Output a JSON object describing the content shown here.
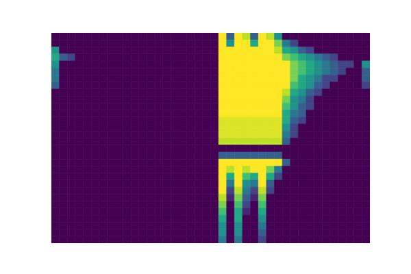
{
  "chart_data": {
    "type": "heatmap",
    "tick_labels": false,
    "clim": [
      0,
      1
    ],
    "cells": [
      [
        0,
        0,
        0,
        0,
        0,
        0,
        0,
        0,
        0,
        0,
        0,
        0,
        0,
        0,
        0,
        0,
        0,
        0,
        0,
        0,
        0,
        1,
        0.3,
        1,
        0.9,
        0.3,
        1,
        0.9,
        0.5,
        0,
        0,
        0,
        0,
        0,
        0,
        0,
        0,
        0,
        0,
        0
      ],
      [
        0,
        0,
        0,
        0,
        0,
        0,
        0,
        0,
        0,
        0,
        0,
        0,
        0,
        0,
        0,
        0,
        0,
        0,
        0,
        0,
        0,
        1,
        0.5,
        1,
        1,
        0.6,
        1,
        1,
        0.8,
        0.4,
        0.2,
        0,
        0,
        0,
        0,
        0,
        0,
        0,
        0,
        0
      ],
      [
        0.5,
        0,
        0,
        0,
        0,
        0,
        0,
        0,
        0,
        0,
        0,
        0,
        0,
        0,
        0,
        0,
        0,
        0,
        0,
        0,
        0,
        1,
        1,
        1,
        1,
        1,
        1,
        1,
        0.9,
        0.6,
        0.5,
        0.3,
        0.2,
        0,
        0,
        0,
        0,
        0,
        0,
        0
      ],
      [
        0.6,
        0.3,
        0.2,
        0,
        0,
        0,
        0,
        0,
        0,
        0,
        0,
        0,
        0,
        0,
        0,
        0,
        0,
        0,
        0,
        0,
        0,
        1,
        1,
        1,
        1,
        1,
        1,
        1,
        1,
        0.8,
        0.7,
        0.6,
        0.5,
        0.4,
        0.3,
        0.2,
        0,
        0,
        0,
        0
      ],
      [
        0.5,
        0,
        0,
        0,
        0,
        0,
        0,
        0,
        0,
        0,
        0,
        0,
        0,
        0,
        0,
        0,
        0,
        0,
        0,
        0,
        0,
        1,
        1,
        1,
        1,
        1,
        1,
        1,
        1,
        1,
        0.8,
        0.7,
        0.6,
        0.5,
        0.4,
        0.3,
        0.2,
        0.2,
        0,
        0.5
      ],
      [
        0.4,
        0,
        0,
        0,
        0,
        0,
        0,
        0,
        0,
        0,
        0,
        0,
        0,
        0,
        0,
        0,
        0,
        0,
        0,
        0,
        0,
        1,
        1,
        1,
        1,
        1,
        1,
        1,
        1,
        1,
        0.8,
        0.7,
        0.6,
        0.5,
        0.4,
        0.3,
        0.2,
        0,
        0,
        0.3
      ],
      [
        0.4,
        0,
        0,
        0,
        0,
        0,
        0,
        0,
        0,
        0,
        0,
        0,
        0,
        0,
        0,
        0,
        0,
        0,
        0,
        0,
        0,
        1,
        1,
        1,
        1,
        1,
        1,
        1,
        1,
        1,
        0.8,
        0.6,
        0.5,
        0.4,
        0.2,
        0.2,
        0,
        0,
        0,
        0.3
      ],
      [
        0.3,
        0,
        0,
        0,
        0,
        0,
        0,
        0,
        0,
        0,
        0,
        0,
        0,
        0,
        0,
        0,
        0,
        0,
        0,
        0,
        0,
        1,
        1,
        1,
        1,
        1,
        1,
        1,
        1,
        1,
        0.7,
        0.6,
        0.5,
        0.3,
        0.2,
        0,
        0,
        0,
        0,
        0.2
      ],
      [
        0,
        0,
        0,
        0,
        0,
        0,
        0,
        0,
        0,
        0,
        0,
        0,
        0,
        0,
        0,
        0,
        0,
        0,
        0,
        0,
        0,
        1,
        1,
        1,
        1,
        1,
        1,
        1,
        1,
        0.9,
        0.6,
        0.5,
        0.3,
        0.2,
        0,
        0,
        0,
        0,
        0,
        0
      ],
      [
        0,
        0,
        0,
        0,
        0,
        0,
        0,
        0,
        0,
        0,
        0,
        0,
        0,
        0,
        0,
        0,
        0,
        0,
        0,
        0,
        0,
        1,
        1,
        1,
        1,
        1,
        1,
        1,
        1,
        0.8,
        0.5,
        0.4,
        0.2,
        0,
        0,
        0,
        0,
        0,
        0,
        0
      ],
      [
        0,
        0,
        0,
        0,
        0,
        0,
        0,
        0,
        0,
        0,
        0,
        0,
        0,
        0,
        0,
        0,
        0,
        0,
        0,
        0,
        0,
        1,
        1,
        1,
        1,
        1,
        1,
        1,
        1,
        0.7,
        0.5,
        0.3,
        0.2,
        0,
        0,
        0,
        0,
        0,
        0,
        0
      ],
      [
        0,
        0,
        0,
        0,
        0,
        0,
        0,
        0,
        0,
        0,
        0,
        0,
        0,
        0,
        0,
        0,
        0,
        0,
        0,
        0,
        0,
        1,
        1,
        1,
        1,
        1,
        1,
        1,
        1,
        0.6,
        0.4,
        0.3,
        0,
        0,
        0,
        0,
        0,
        0,
        0,
        0
      ],
      [
        0,
        0,
        0,
        0,
        0,
        0,
        0,
        0,
        0,
        0,
        0,
        0,
        0,
        0,
        0,
        0,
        0,
        0,
        0,
        0,
        0,
        0.95,
        0.95,
        0.95,
        0.95,
        0.95,
        0.95,
        0.95,
        0.95,
        0.6,
        0.3,
        0.2,
        0,
        0,
        0,
        0,
        0,
        0,
        0,
        0
      ],
      [
        0,
        0,
        0,
        0,
        0,
        0,
        0,
        0,
        0,
        0,
        0,
        0,
        0,
        0,
        0,
        0,
        0,
        0,
        0,
        0,
        0,
        0.95,
        0.95,
        0.95,
        0.95,
        0.95,
        0.95,
        0.95,
        0.95,
        0.5,
        0.2,
        0,
        0,
        0,
        0,
        0,
        0,
        0,
        0,
        0
      ],
      [
        0,
        0,
        0,
        0,
        0,
        0,
        0,
        0,
        0,
        0,
        0,
        0,
        0,
        0,
        0,
        0,
        0,
        0,
        0,
        0,
        0,
        0.95,
        0.95,
        0.95,
        0.95,
        0.95,
        0.95,
        0.95,
        0.95,
        0.4,
        0.2,
        0,
        0,
        0,
        0,
        0,
        0,
        0,
        0,
        0
      ],
      [
        0,
        0,
        0,
        0,
        0,
        0,
        0,
        0,
        0,
        0,
        0,
        0,
        0,
        0,
        0,
        0,
        0,
        0,
        0,
        0,
        0,
        0.9,
        0.9,
        0.9,
        0.9,
        0.9,
        0.9,
        0.9,
        0.9,
        0.3,
        0,
        0,
        0,
        0,
        0,
        0,
        0,
        0,
        0,
        0
      ],
      [
        0,
        0,
        0,
        0,
        0,
        0,
        0,
        0,
        0,
        0,
        0,
        0,
        0,
        0,
        0,
        0,
        0,
        0,
        0,
        0,
        0,
        0,
        0,
        0,
        0,
        0,
        0,
        0,
        0,
        0,
        0,
        0,
        0,
        0,
        0,
        0,
        0,
        0,
        0,
        0
      ],
      [
        0,
        0,
        0,
        0,
        0,
        0,
        0,
        0,
        0,
        0,
        0,
        0,
        0,
        0,
        0,
        0,
        0,
        0,
        0,
        0,
        0,
        0.3,
        0.3,
        0.3,
        0.3,
        0.3,
        0.3,
        0.3,
        0.3,
        0,
        0,
        0,
        0,
        0,
        0,
        0,
        0,
        0,
        0,
        0
      ],
      [
        0,
        0,
        0,
        0,
        0,
        0,
        0,
        0,
        0,
        0,
        0,
        0,
        0,
        0,
        0,
        0,
        0,
        0,
        0,
        0,
        0,
        1,
        1,
        1,
        1,
        1,
        1,
        1,
        1,
        0.3,
        0,
        0,
        0,
        0,
        0,
        0,
        0,
        0,
        0,
        0
      ],
      [
        0,
        0,
        0,
        0,
        0,
        0,
        0,
        0,
        0,
        0,
        0,
        0,
        0,
        0,
        0,
        0,
        0,
        0,
        0,
        0,
        0,
        1,
        0.9,
        1,
        0.9,
        1,
        1,
        0.8,
        0.4,
        0,
        0,
        0,
        0,
        0,
        0,
        0,
        0,
        0,
        0,
        0
      ],
      [
        0,
        0,
        0,
        0,
        0,
        0,
        0,
        0,
        0,
        0,
        0,
        0,
        0,
        0,
        0,
        0,
        0,
        0,
        0,
        0,
        0,
        1,
        0.6,
        1,
        0.7,
        0.6,
        1,
        0.6,
        0.2,
        0,
        0,
        0,
        0,
        0,
        0,
        0,
        0,
        0,
        0,
        0
      ],
      [
        0,
        0,
        0,
        0,
        0,
        0,
        0,
        0,
        0,
        0,
        0,
        0,
        0,
        0,
        0,
        0,
        0,
        0,
        0,
        0,
        0,
        1,
        0.4,
        1,
        0.5,
        0.4,
        1,
        0.3,
        0,
        0,
        0,
        0,
        0,
        0,
        0,
        0,
        0,
        0,
        0,
        0
      ],
      [
        0,
        0,
        0,
        0,
        0,
        0,
        0,
        0,
        0,
        0,
        0,
        0,
        0,
        0,
        0,
        0,
        0,
        0,
        0,
        0,
        0,
        1,
        0.2,
        0.9,
        0.4,
        0.2,
        0.9,
        0.2,
        0,
        0,
        0,
        0,
        0,
        0,
        0,
        0,
        0,
        0,
        0,
        0
      ],
      [
        0,
        0,
        0,
        0,
        0,
        0,
        0,
        0,
        0,
        0,
        0,
        0,
        0,
        0,
        0,
        0,
        0,
        0,
        0,
        0,
        0,
        0.9,
        0.1,
        0.8,
        0.3,
        0.1,
        0.8,
        0,
        0,
        0,
        0,
        0,
        0,
        0,
        0,
        0,
        0,
        0,
        0,
        0
      ],
      [
        0,
        0,
        0,
        0,
        0,
        0,
        0,
        0,
        0,
        0,
        0,
        0,
        0,
        0,
        0,
        0,
        0,
        0,
        0,
        0,
        0,
        0.8,
        0,
        0.7,
        0.2,
        0,
        0.7,
        0,
        0,
        0,
        0,
        0,
        0,
        0,
        0,
        0,
        0,
        0,
        0,
        0
      ],
      [
        0,
        0,
        0,
        0,
        0,
        0,
        0,
        0,
        0,
        0,
        0,
        0,
        0,
        0,
        0,
        0,
        0,
        0,
        0,
        0,
        0,
        0.7,
        0,
        0.6,
        0.1,
        0,
        0.6,
        0,
        0,
        0,
        0,
        0,
        0,
        0,
        0,
        0,
        0,
        0,
        0,
        0
      ],
      [
        0,
        0,
        0,
        0,
        0,
        0,
        0,
        0,
        0,
        0,
        0,
        0,
        0,
        0,
        0,
        0,
        0,
        0,
        0,
        0,
        0,
        0.6,
        0,
        0.6,
        0,
        0,
        0.5,
        0,
        0,
        0,
        0,
        0,
        0,
        0,
        0,
        0,
        0,
        0,
        0,
        0
      ],
      [
        0,
        0,
        0,
        0,
        0,
        0,
        0,
        0,
        0,
        0,
        0,
        0,
        0,
        0,
        0,
        0,
        0,
        0,
        0,
        0,
        0,
        0.5,
        0,
        0.5,
        0,
        0,
        0.4,
        0,
        0,
        0,
        0,
        0,
        0,
        0,
        0,
        0,
        0,
        0,
        0,
        0
      ],
      [
        0,
        0,
        0,
        0,
        0,
        0,
        0,
        0,
        0,
        0,
        0,
        0,
        0,
        0,
        0,
        0,
        0,
        0,
        0,
        0,
        0,
        0.5,
        0,
        0.5,
        0,
        0,
        0.3,
        0,
        0,
        0,
        0,
        0,
        0,
        0,
        0,
        0,
        0,
        0,
        0,
        0
      ],
      [
        0,
        0,
        0,
        0,
        0,
        0,
        0,
        0,
        0,
        0,
        0,
        0,
        0,
        0,
        0,
        0,
        0,
        0,
        0,
        0,
        0,
        0.4,
        0,
        0.4,
        0,
        0,
        0.2,
        0,
        0,
        0,
        0,
        0,
        0,
        0,
        0,
        0,
        0,
        0,
        0,
        0
      ]
    ]
  }
}
